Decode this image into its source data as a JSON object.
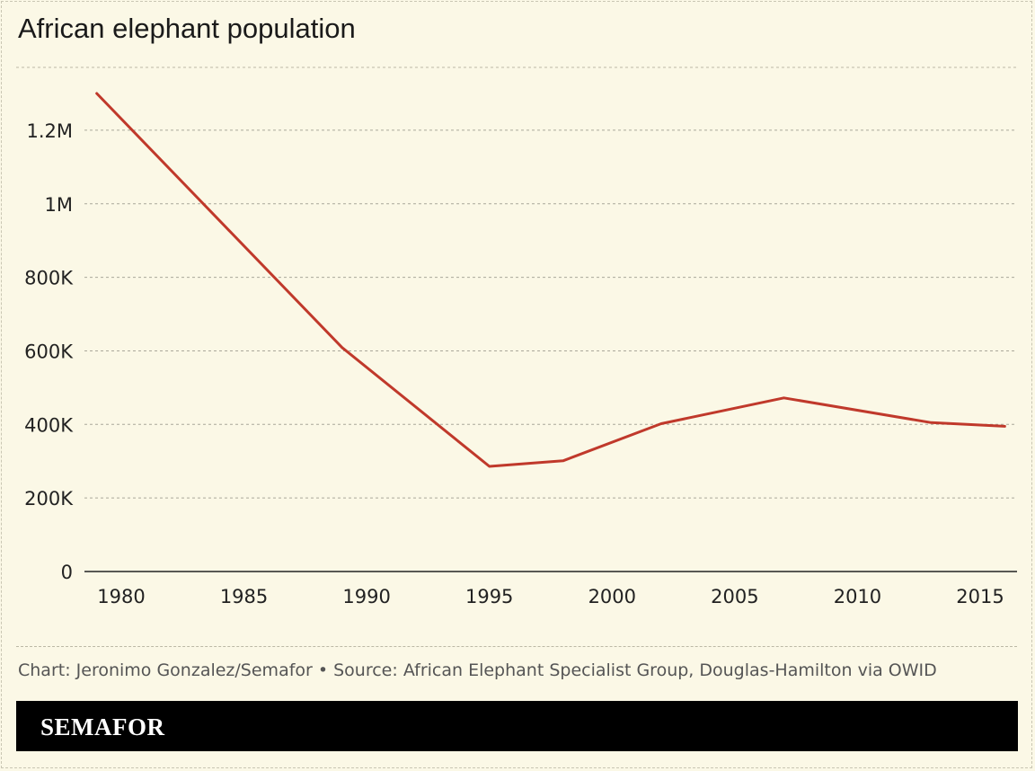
{
  "title": "African elephant population",
  "source": "Chart: Jeronimo Gonzalez/Semafor • Source: African Elephant Specialist Group, Douglas-Hamilton via OWID",
  "brand": "SEMAFOR",
  "colors": {
    "line": "#c0392b",
    "background": "#fbf8e6",
    "brand_bar": "#000000"
  },
  "chart_data": {
    "type": "line",
    "title": "African elephant population",
    "xlabel": "",
    "ylabel": "",
    "xlim": [
      1978.5,
      2016.5
    ],
    "ylim": [
      0,
      1300000
    ],
    "x_ticks": [
      1980,
      1985,
      1990,
      1995,
      2000,
      2005,
      2010,
      2015
    ],
    "x_tick_labels": [
      "1980",
      "1985",
      "1990",
      "1995",
      "2000",
      "2005",
      "2010",
      "2015"
    ],
    "y_ticks": [
      0,
      200000,
      400000,
      600000,
      800000,
      1000000,
      1200000
    ],
    "y_tick_labels": [
      "0",
      "200K",
      "400K",
      "600K",
      "800K",
      "1M",
      "1.2M"
    ],
    "grid": true,
    "series": [
      {
        "x": [
          1979,
          1989,
          1995,
          1998,
          2002,
          2007,
          2013,
          2016
        ],
        "y": [
          1300000,
          609000,
          286000,
          301000,
          402000,
          472000,
          405000,
          395000
        ]
      }
    ]
  }
}
